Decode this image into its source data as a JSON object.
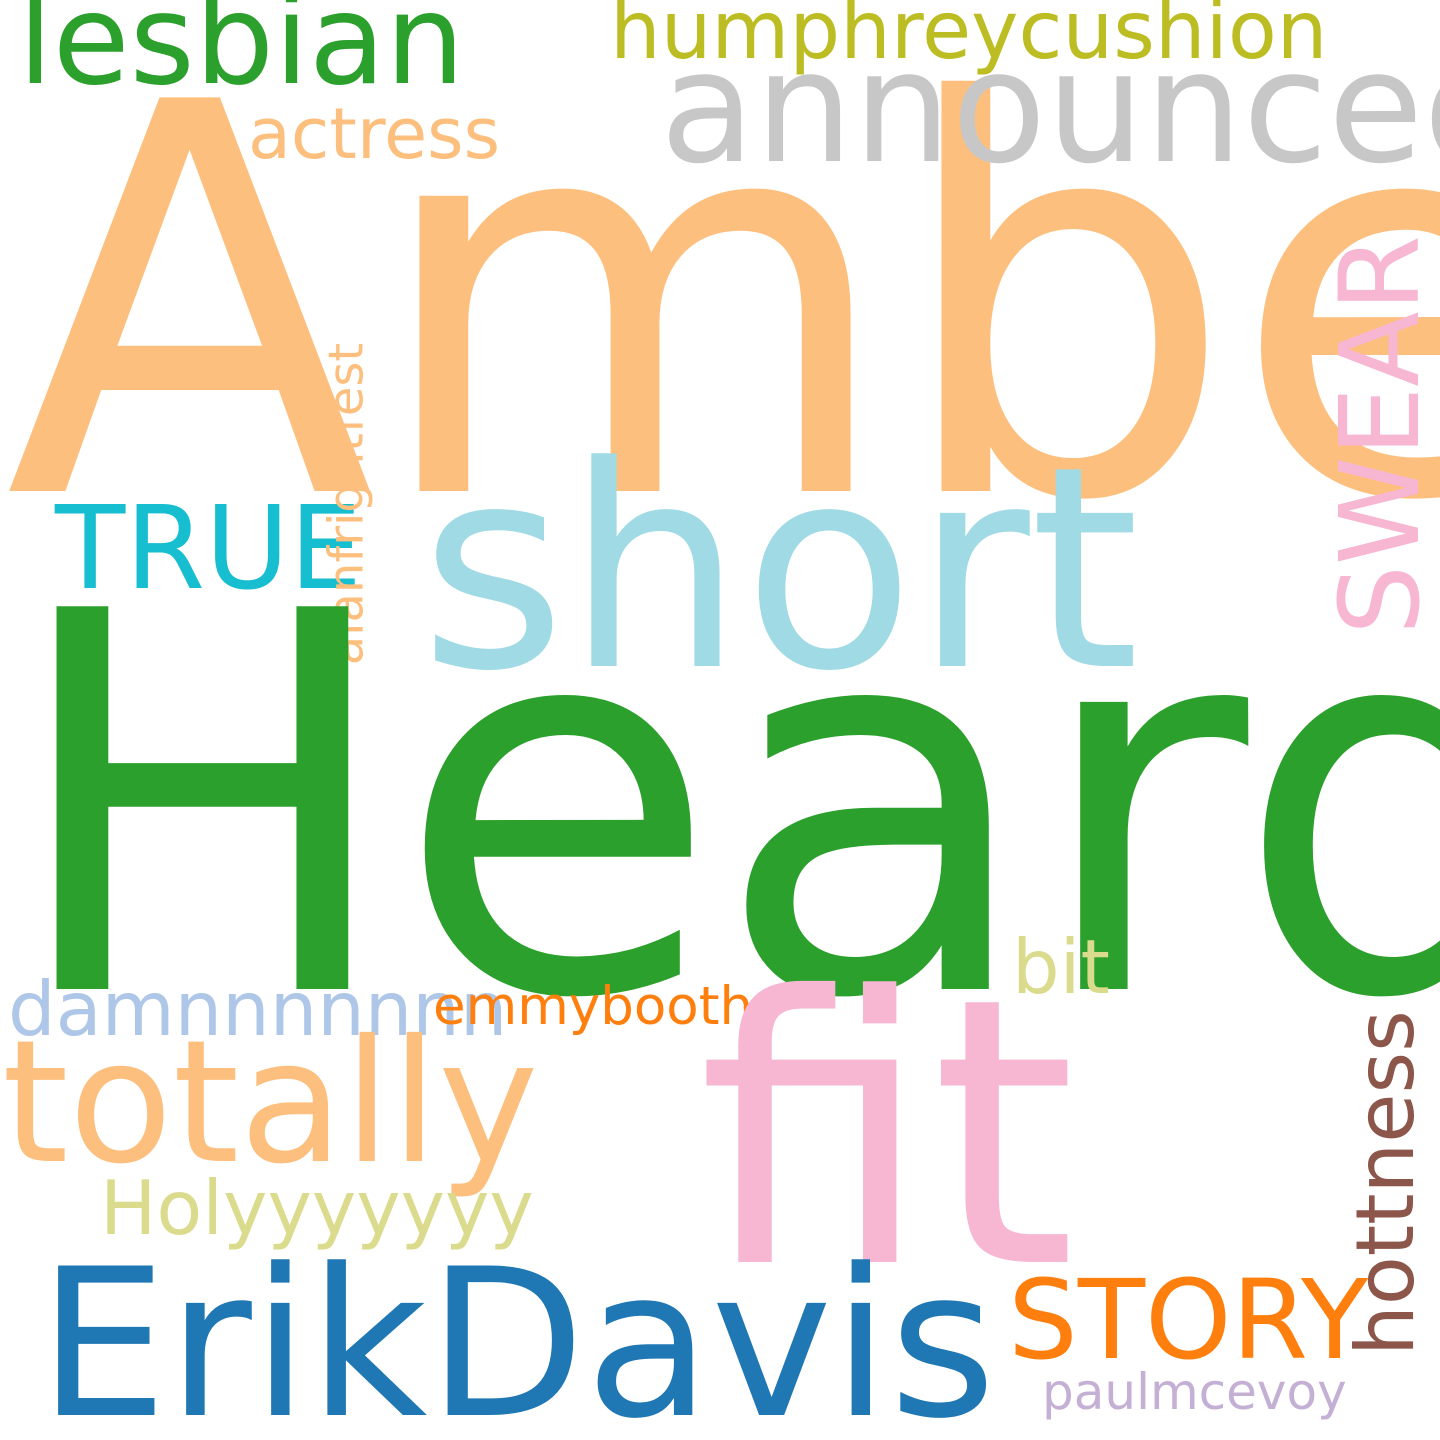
{
  "words": {
    "amber": {
      "text": "Amber",
      "color": "#fdbf7d"
    },
    "heard": {
      "text": "Heard",
      "color": "#2ca02c"
    },
    "short": {
      "text": "short",
      "color": "#9fdae5"
    },
    "fit": {
      "text": "fit",
      "color": "#f7b6d2"
    },
    "erikdavis": {
      "text": "ErikDavis",
      "color": "#1f77b4"
    },
    "totally": {
      "text": "totally",
      "color": "#fdbf7d"
    },
    "announced": {
      "text": "announced",
      "color": "#c7c7c7"
    },
    "lesbian": {
      "text": "lesbian",
      "color": "#2ca02c"
    },
    "true": {
      "text": "TRUE",
      "color": "#17becf"
    },
    "swear": {
      "text": "SWEAR",
      "color": "#f7b6d2"
    },
    "story": {
      "text": "STORY",
      "color": "#ff7f0e"
    },
    "humphreycushion": {
      "text": "humphreycushion",
      "color": "#bcbd22"
    },
    "actress": {
      "text": "actress",
      "color": "#fdbf7d"
    },
    "alanfrightfest": {
      "text": "alanfrightfest",
      "color": "#fdbf7d"
    },
    "damnnnnnnn": {
      "text": "damnnnnnnn",
      "color": "#aec7e8"
    },
    "holyyyyyyy": {
      "text": "Holyyyyyyy",
      "color": "#dbdb8d"
    },
    "bit": {
      "text": "bit",
      "color": "#dbdb8d"
    },
    "emmybooth": {
      "text": "emmybooth",
      "color": "#ff7f0e"
    },
    "hottness": {
      "text": "hottness",
      "color": "#8c564b"
    },
    "paulmcevoy": {
      "text": "paulmcevoy",
      "color": "#c5b0d5"
    }
  }
}
